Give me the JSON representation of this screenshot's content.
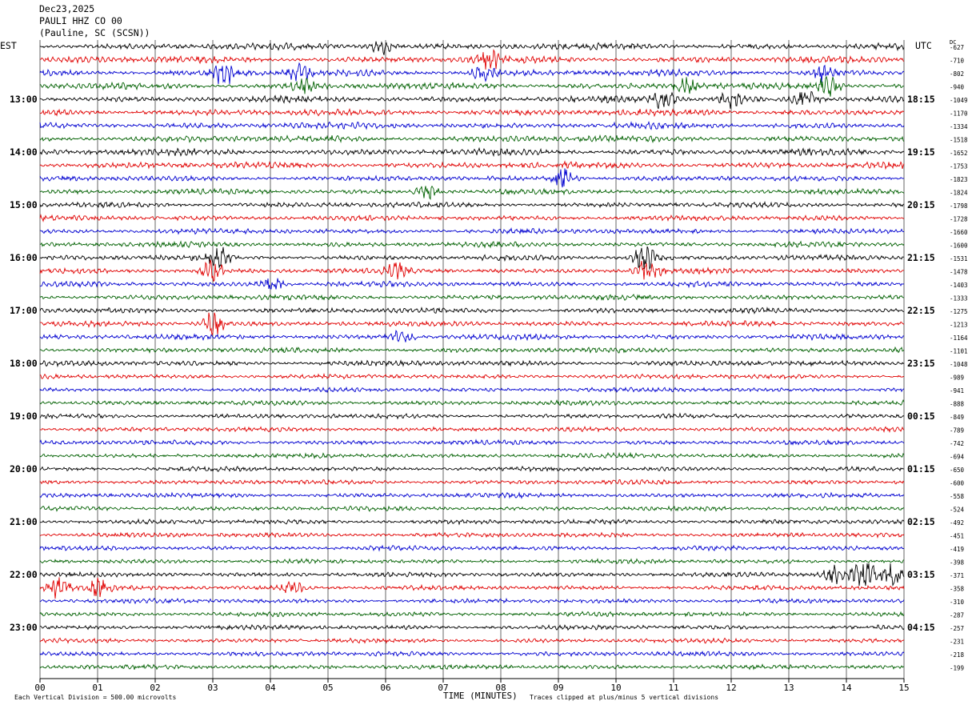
{
  "header": {
    "date": "Dec23,2025",
    "station": "PAULI HHZ CO 00",
    "location": "(Pauline, SC (SCSN))"
  },
  "tz_left": "EST",
  "tz_right": "UTC",
  "dc_label": "DC",
  "footer": {
    "left_note": "Each Vertical Division =  500.00 microvolts",
    "xlabel": "TIME (MINUTES)",
    "right_note": "Traces clipped at plus/minus 5 vertical divisions"
  },
  "colors": {
    "cycle": [
      "#000000",
      "#e00000",
      "#0000d0",
      "#006000"
    ],
    "grid": "#000000"
  },
  "chart_data": {
    "type": "line",
    "title": "PAULI HHZ CO 00",
    "xlabel": "TIME (MINUTES)",
    "x_ticks": [
      "00",
      "01",
      "02",
      "03",
      "04",
      "05",
      "06",
      "07",
      "08",
      "09",
      "10",
      "11",
      "12",
      "13",
      "14",
      "15"
    ],
    "x_range": [
      0,
      15
    ],
    "hour_labels_left": [
      "13:00",
      "14:00",
      "15:00",
      "16:00",
      "17:00",
      "18:00",
      "19:00",
      "20:00",
      "21:00",
      "22:00",
      "23:00"
    ],
    "hour_labels_right": [
      "18:15",
      "19:15",
      "20:15",
      "21:15",
      "22:15",
      "23:15",
      "00:15",
      "01:15",
      "02:15",
      "03:15",
      "04:15"
    ],
    "dc_offsets": [
      -627,
      -710,
      -802,
      -940,
      -1049,
      -1170,
      -1334,
      -1518,
      -1652,
      -1753,
      -1823,
      -1824,
      -1798,
      -1728,
      -1660,
      -1600,
      -1531,
      -1478,
      -1403,
      -1333,
      -1275,
      -1213,
      -1164,
      -1101,
      -1048,
      -989,
      -941,
      -888,
      -849,
      -789,
      -742,
      -694,
      -650,
      -600,
      -558,
      -524,
      -492,
      -451,
      -419,
      -398,
      -371,
      -358,
      -310,
      -287,
      -257,
      -231,
      -218,
      -199
    ],
    "trace_count": 48,
    "minutes_per_trace": 15,
    "events": [
      {
        "trace": 0,
        "minute": 5.9,
        "amp": 1.6
      },
      {
        "trace": 1,
        "minute": 7.8,
        "amp": 1.9
      },
      {
        "trace": 2,
        "minute": 3.2,
        "amp": 2.2
      },
      {
        "trace": 2,
        "minute": 4.5,
        "amp": 1.6
      },
      {
        "trace": 2,
        "minute": 7.7,
        "amp": 1.5
      },
      {
        "trace": 2,
        "minute": 13.6,
        "amp": 1.4
      },
      {
        "trace": 3,
        "minute": 4.6,
        "amp": 1.5
      },
      {
        "trace": 3,
        "minute": 11.2,
        "amp": 1.5
      },
      {
        "trace": 3,
        "minute": 13.7,
        "amp": 2.2
      },
      {
        "trace": 4,
        "minute": 10.8,
        "amp": 2.0
      },
      {
        "trace": 4,
        "minute": 12.0,
        "amp": 1.6
      },
      {
        "trace": 4,
        "minute": 13.3,
        "amp": 1.9
      },
      {
        "trace": 10,
        "minute": 9.1,
        "amp": 2.4
      },
      {
        "trace": 11,
        "minute": 6.7,
        "amp": 1.5
      },
      {
        "trace": 16,
        "minute": 3.1,
        "amp": 2.2
      },
      {
        "trace": 16,
        "minute": 10.5,
        "amp": 3.0
      },
      {
        "trace": 17,
        "minute": 3.0,
        "amp": 2.6
      },
      {
        "trace": 17,
        "minute": 10.55,
        "amp": 2.8
      },
      {
        "trace": 17,
        "minute": 6.2,
        "amp": 1.4
      },
      {
        "trace": 18,
        "minute": 4.0,
        "amp": 1.6
      },
      {
        "trace": 21,
        "minute": 3.0,
        "amp": 2.4
      },
      {
        "trace": 22,
        "minute": 6.3,
        "amp": 1.5
      },
      {
        "trace": 40,
        "minute": 13.8,
        "amp": 2.0
      },
      {
        "trace": 40,
        "minute": 14.3,
        "amp": 3.0
      },
      {
        "trace": 40,
        "minute": 14.8,
        "amp": 2.2
      },
      {
        "trace": 41,
        "minute": 0.3,
        "amp": 2.4
      },
      {
        "trace": 41,
        "minute": 1.0,
        "amp": 1.6
      },
      {
        "trace": 41,
        "minute": 4.4,
        "amp": 1.6
      }
    ]
  }
}
